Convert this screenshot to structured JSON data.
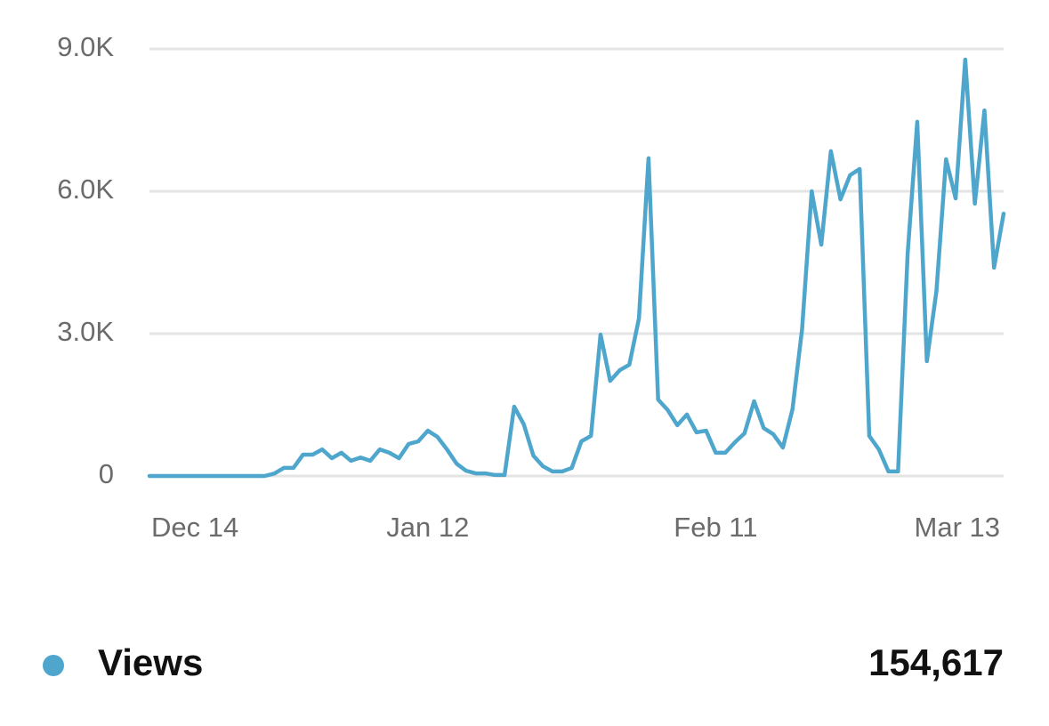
{
  "chart_data": {
    "type": "line",
    "categories": [
      "Dec 14",
      null,
      null,
      null,
      null,
      null,
      null,
      null,
      null,
      null,
      null,
      null,
      null,
      null,
      null,
      null,
      null,
      null,
      null,
      null,
      null,
      null,
      null,
      null,
      null,
      null,
      null,
      null,
      null,
      "Jan 12",
      null,
      null,
      null,
      null,
      null,
      null,
      null,
      null,
      null,
      null,
      null,
      null,
      null,
      null,
      null,
      null,
      null,
      null,
      null,
      null,
      null,
      null,
      null,
      null,
      null,
      null,
      null,
      null,
      null,
      "Feb 11",
      null,
      null,
      null,
      null,
      null,
      null,
      null,
      null,
      null,
      null,
      null,
      null,
      null,
      null,
      null,
      null,
      null,
      null,
      null,
      null,
      null,
      null,
      null,
      null,
      null,
      null,
      null,
      null,
      null,
      "Mar 13"
    ],
    "series": [
      {
        "name": "Views",
        "color": "#4fa6cc",
        "values": [
          0,
          0,
          0,
          0,
          0,
          0,
          0,
          0,
          0,
          0,
          0,
          0,
          0,
          50,
          170,
          170,
          450,
          450,
          560,
          375,
          490,
          320,
          390,
          320,
          560,
          490,
          375,
          675,
          730,
          955,
          825,
          560,
          260,
          110,
          55,
          55,
          20,
          20,
          1460,
          1090,
          430,
          205,
          95,
          95,
          170,
          730,
          845,
          2980,
          2005,
          2230,
          2345,
          3320,
          6695,
          1610,
          1390,
          1070,
          1295,
          920,
          955,
          490,
          490,
          710,
          900,
          1575,
          1010,
          880,
          600,
          1405,
          3095,
          6000,
          4875,
          6845,
          5830,
          6340,
          6470,
          845,
          560,
          95,
          95,
          4690,
          7465,
          2420,
          3900,
          6675,
          5850,
          8775,
          5740,
          7705,
          4390,
          5530
        ]
      }
    ],
    "ylim": [
      0,
      9000
    ],
    "yticks": [
      0,
      {
        "value": 3000,
        "label": "3.0K"
      },
      {
        "value": 6000,
        "label": "6.0K"
      },
      {
        "value": 9000,
        "label": "9.0K"
      }
    ],
    "grid": true,
    "total": "154,617"
  }
}
